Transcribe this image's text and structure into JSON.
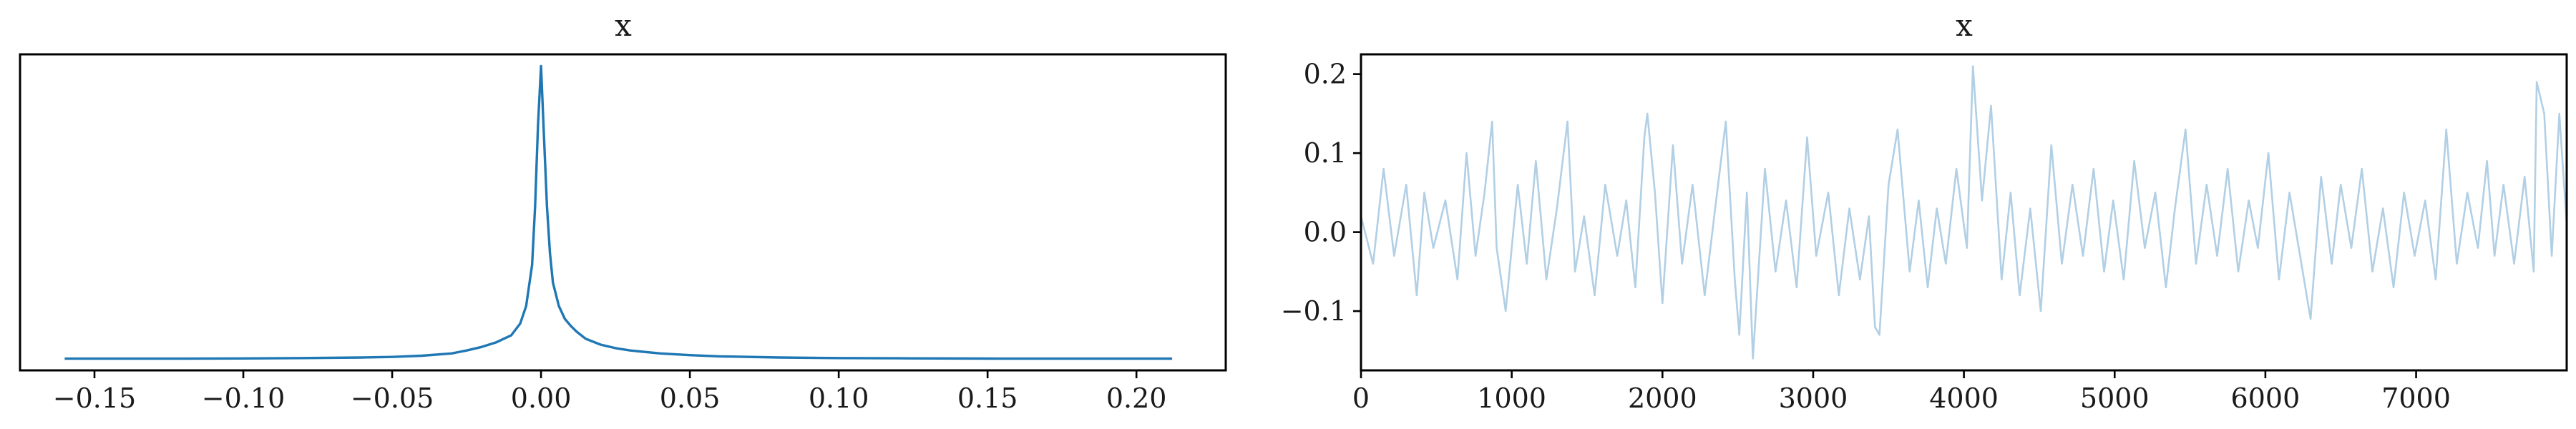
{
  "chart_data": [
    {
      "type": "line",
      "title": "x",
      "xlabel": "",
      "ylabel": "",
      "xlim": [
        -0.175,
        0.23
      ],
      "ylim": [
        -1,
        26
      ],
      "grid": false,
      "x_ticks": [
        -0.15,
        -0.1,
        -0.05,
        0.0,
        0.05,
        0.1,
        0.15,
        0.2
      ],
      "x_tick_labels": [
        "−0.15",
        "−0.10",
        "−0.05",
        "0.00",
        "0.05",
        "0.10",
        "0.15",
        "0.20"
      ],
      "y_ticks": [],
      "color": "#1f77b4",
      "series": [
        {
          "x": [
            -0.16,
            -0.14,
            -0.12,
            -0.1,
            -0.08,
            -0.06,
            -0.05,
            -0.04,
            -0.03,
            -0.025,
            -0.02,
            -0.015,
            -0.01,
            -0.007,
            -0.005,
            -0.003,
            -0.002,
            -0.001,
            0.0,
            0.001,
            0.002,
            0.003,
            0.004,
            0.006,
            0.008,
            0.01,
            0.012,
            0.015,
            0.02,
            0.025,
            0.03,
            0.04,
            0.05,
            0.06,
            0.08,
            0.1,
            0.12,
            0.15,
            0.18,
            0.212
          ],
          "y": [
            0.0,
            0.0,
            0.0,
            0.02,
            0.05,
            0.1,
            0.15,
            0.25,
            0.45,
            0.7,
            1.0,
            1.4,
            2.0,
            3.0,
            4.5,
            8.0,
            13.0,
            20.0,
            25.0,
            19.0,
            13.0,
            9.0,
            6.5,
            4.5,
            3.4,
            2.8,
            2.3,
            1.7,
            1.2,
            0.9,
            0.7,
            0.45,
            0.3,
            0.2,
            0.1,
            0.05,
            0.03,
            0.01,
            0.0,
            0.0
          ]
        }
      ]
    },
    {
      "type": "line",
      "title": "x",
      "xlabel": "",
      "ylabel": "",
      "xlim": [
        0,
        7999
      ],
      "ylim": [
        -0.175,
        0.225
      ],
      "grid": false,
      "x_ticks": [
        0,
        1000,
        2000,
        3000,
        4000,
        5000,
        6000,
        7000
      ],
      "x_tick_labels": [
        "0",
        "1000",
        "2000",
        "3000",
        "4000",
        "5000",
        "6000",
        "7000"
      ],
      "y_ticks": [
        -0.1,
        0.0,
        0.1,
        0.2
      ],
      "y_tick_labels": [
        "−0.1",
        "0.0",
        "0.1",
        "0.2"
      ],
      "color": "#b1cfe5",
      "series": [
        {
          "x": [
            0,
            80,
            150,
            220,
            300,
            370,
            420,
            480,
            560,
            640,
            700,
            760,
            820,
            870,
            900,
            960,
            1040,
            1100,
            1160,
            1230,
            1300,
            1370,
            1420,
            1480,
            1550,
            1620,
            1700,
            1760,
            1820,
            1880,
            1900,
            1950,
            2000,
            2070,
            2130,
            2200,
            2280,
            2350,
            2420,
            2480,
            2510,
            2560,
            2600,
            2680,
            2750,
            2820,
            2890,
            2960,
            3020,
            3100,
            3170,
            3240,
            3310,
            3370,
            3410,
            3440,
            3500,
            3560,
            3640,
            3700,
            3760,
            3820,
            3880,
            3950,
            4020,
            4060,
            4120,
            4180,
            4250,
            4310,
            4370,
            4440,
            4510,
            4580,
            4650,
            4720,
            4790,
            4860,
            4930,
            4990,
            5060,
            5130,
            5200,
            5270,
            5340,
            5400,
            5470,
            5540,
            5610,
            5680,
            5750,
            5820,
            5890,
            5950,
            6020,
            6090,
            6160,
            6230,
            6300,
            6370,
            6440,
            6500,
            6570,
            6640,
            6710,
            6780,
            6850,
            6920,
            6990,
            7060,
            7130,
            7200,
            7270,
            7340,
            7410,
            7470,
            7520,
            7580,
            7650,
            7720,
            7780,
            7800,
            7850,
            7900,
            7950,
            7999
          ],
          "y": [
            0.02,
            -0.04,
            0.08,
            -0.03,
            0.06,
            -0.08,
            0.05,
            -0.02,
            0.04,
            -0.06,
            0.1,
            -0.03,
            0.05,
            0.14,
            -0.02,
            -0.1,
            0.06,
            -0.04,
            0.09,
            -0.06,
            0.03,
            0.14,
            -0.05,
            0.02,
            -0.08,
            0.06,
            -0.03,
            0.04,
            -0.07,
            0.12,
            0.15,
            0.05,
            -0.09,
            0.11,
            -0.04,
            0.06,
            -0.08,
            0.03,
            0.14,
            -0.06,
            -0.13,
            0.05,
            -0.16,
            0.08,
            -0.05,
            0.04,
            -0.07,
            0.12,
            -0.03,
            0.05,
            -0.08,
            0.03,
            -0.06,
            0.02,
            -0.12,
            -0.13,
            0.06,
            0.13,
            -0.05,
            0.04,
            -0.07,
            0.03,
            -0.04,
            0.08,
            -0.02,
            0.21,
            0.04,
            0.16,
            -0.06,
            0.05,
            -0.08,
            0.03,
            -0.1,
            0.11,
            -0.04,
            0.06,
            -0.03,
            0.08,
            -0.05,
            0.04,
            -0.06,
            0.09,
            -0.02,
            0.05,
            -0.07,
            0.03,
            0.13,
            -0.04,
            0.06,
            -0.03,
            0.08,
            -0.05,
            0.04,
            -0.02,
            0.1,
            -0.06,
            0.05,
            -0.03,
            -0.11,
            0.07,
            -0.04,
            0.06,
            -0.02,
            0.08,
            -0.05,
            0.03,
            -0.07,
            0.05,
            -0.03,
            0.04,
            -0.06,
            0.13,
            -0.04,
            0.05,
            -0.02,
            0.09,
            -0.03,
            0.06,
            -0.04,
            0.07,
            -0.05,
            0.19,
            0.15,
            -0.03,
            0.15,
            0.01
          ]
        }
      ]
    }
  ]
}
